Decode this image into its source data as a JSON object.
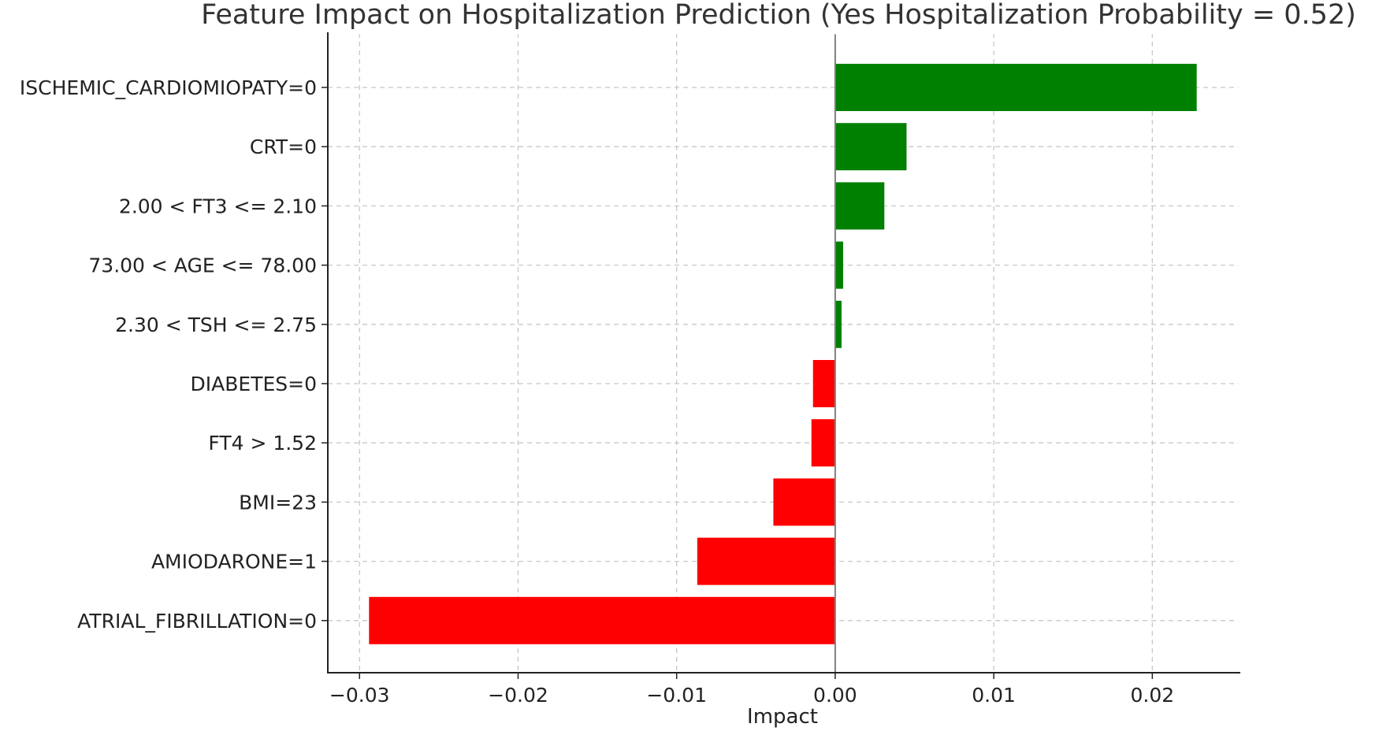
{
  "chart_data": {
    "type": "bar",
    "orientation": "horizontal",
    "title": "Feature Impact on Hospitalization Prediction (Yes Hospitalization Probability = 0.52)",
    "xlabel": "Impact",
    "ylabel": "",
    "categories": [
      "ISCHEMIC_CARDIOMIOPATY=0",
      "CRT=0",
      "2.00 < FT3 <= 2.10",
      "73.00 < AGE <= 78.00",
      "2.30 < TSH <= 2.75",
      "DIABETES=0",
      "FT4 > 1.52",
      "BMI=23",
      "AMIODARONE=1",
      "ATRIAL_FIBRILLATION=0"
    ],
    "values": [
      0.0228,
      0.0045,
      0.0031,
      0.0005,
      0.0004,
      -0.0014,
      -0.0015,
      -0.0039,
      -0.0087,
      -0.0294
    ],
    "xlim": [
      -0.032,
      0.0255
    ],
    "xticks": [
      -0.03,
      -0.02,
      -0.01,
      0.0,
      0.01,
      0.02
    ],
    "xtick_labels": [
      "−0.03",
      "−0.02",
      "−0.01",
      "0.00",
      "0.01",
      "0.02"
    ],
    "grid": true,
    "colors": {
      "positive": "#008000",
      "negative": "#ff0000",
      "zero_line": "#7f7f7f"
    }
  }
}
